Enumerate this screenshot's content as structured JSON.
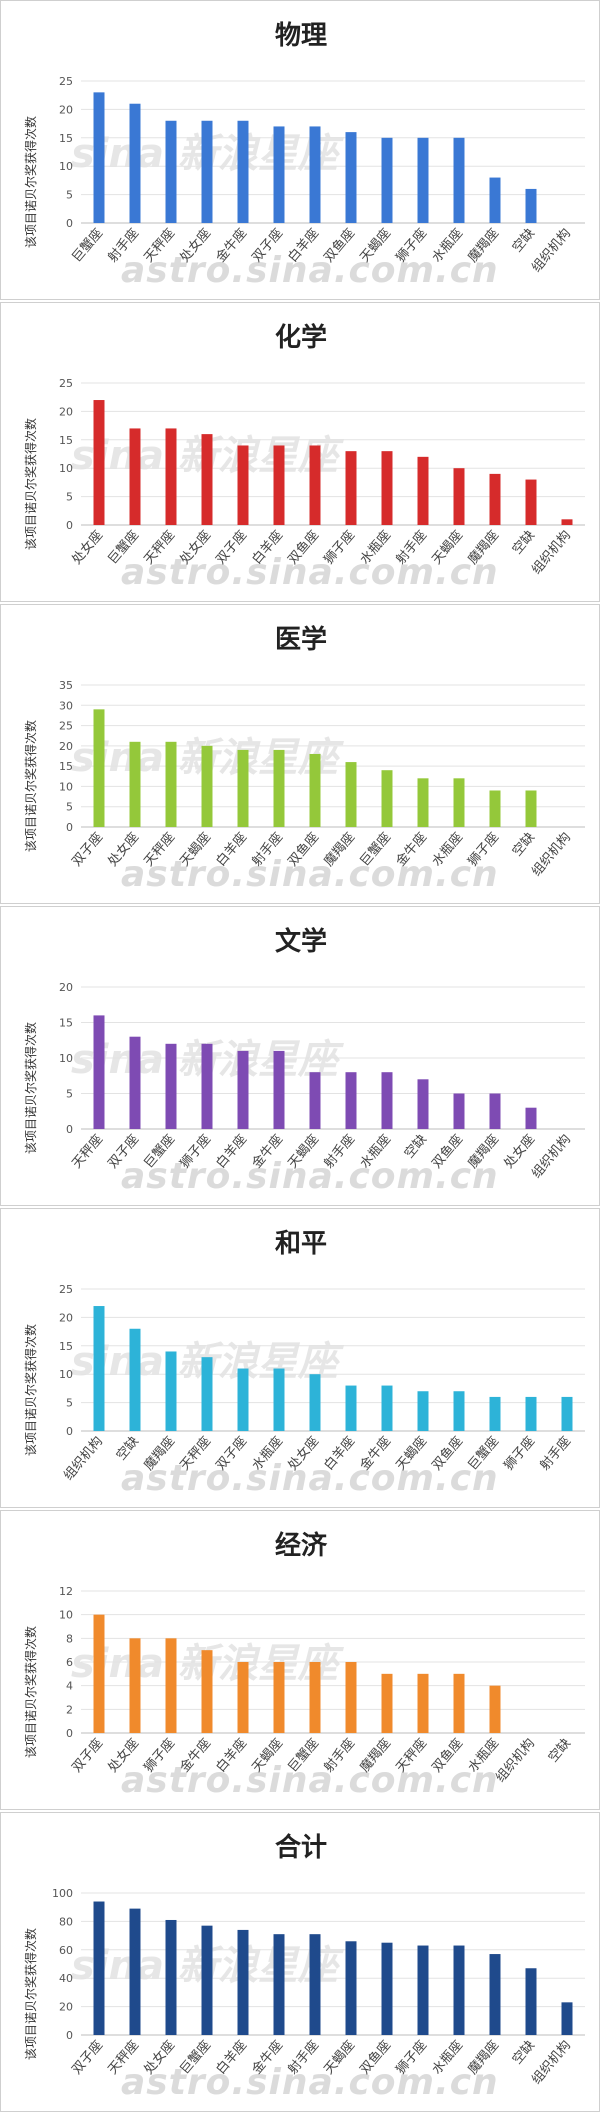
{
  "watermark": {
    "logo_text": "sina 新浪星座",
    "url_text": "astro.sina.com.cn"
  },
  "chart_data": [
    {
      "type": "bar",
      "title": "物理",
      "ylabel": "该项目诺贝尔奖获得次数",
      "color": "#3a78d4",
      "ylim": [
        0,
        25
      ],
      "yticks": [
        0,
        5,
        10,
        15,
        20,
        25
      ],
      "categories": [
        "巨蟹座",
        "射手座",
        "天秤座",
        "处女座",
        "金牛座",
        "双子座",
        "白羊座",
        "双鱼座",
        "天蝎座",
        "狮子座",
        "水瓶座",
        "魔羯座",
        "空缺",
        "组织机构"
      ],
      "values": [
        23,
        21,
        18,
        18,
        18,
        17,
        17,
        16,
        15,
        15,
        15,
        8,
        6,
        0
      ]
    },
    {
      "type": "bar",
      "title": "化学",
      "ylabel": "该项目诺贝尔奖获得次数",
      "color": "#d62b2b",
      "ylim": [
        0,
        25
      ],
      "yticks": [
        0,
        5,
        10,
        15,
        20,
        25
      ],
      "categories": [
        "处女座",
        "巨蟹座",
        "天秤座",
        "处女座",
        "双子座",
        "白羊座",
        "双鱼座",
        "狮子座",
        "水瓶座",
        "射手座",
        "天蝎座",
        "魔羯座",
        "空缺",
        "组织机构"
      ],
      "values": [
        22,
        17,
        17,
        16,
        14,
        14,
        14,
        13,
        13,
        12,
        10,
        9,
        8,
        1
      ]
    },
    {
      "type": "bar",
      "title": "医学",
      "ylabel": "该项目诺贝尔奖获得次数",
      "color": "#94c83a",
      "ylim": [
        0,
        35
      ],
      "yticks": [
        0,
        5,
        10,
        15,
        20,
        25,
        30,
        35
      ],
      "categories": [
        "双子座",
        "处女座",
        "天秤座",
        "天蝎座",
        "白羊座",
        "射手座",
        "双鱼座",
        "魔羯座",
        "巨蟹座",
        "金牛座",
        "水瓶座",
        "狮子座",
        "空缺",
        "组织机构"
      ],
      "values": [
        29,
        21,
        21,
        20,
        19,
        19,
        18,
        16,
        14,
        12,
        12,
        9,
        9,
        0
      ]
    },
    {
      "type": "bar",
      "title": "文学",
      "ylabel": "该项目诺贝尔奖获得次数",
      "color": "#7e4bb3",
      "ylim": [
        0,
        20
      ],
      "yticks": [
        0,
        5,
        10,
        15,
        20
      ],
      "categories": [
        "天秤座",
        "双子座",
        "巨蟹座",
        "狮子座",
        "白羊座",
        "金牛座",
        "天蝎座",
        "射手座",
        "水瓶座",
        "空缺",
        "双鱼座",
        "魔羯座",
        "处女座",
        "组织机构"
      ],
      "values": [
        16,
        13,
        12,
        12,
        11,
        11,
        8,
        8,
        8,
        7,
        5,
        5,
        3,
        0
      ]
    },
    {
      "type": "bar",
      "title": "和平",
      "ylabel": "该项目诺贝尔奖获得次数",
      "color": "#2db3d8",
      "ylim": [
        0,
        25
      ],
      "yticks": [
        0,
        5,
        10,
        15,
        20,
        25
      ],
      "categories": [
        "组织机构",
        "空缺",
        "魔羯座",
        "天秤座",
        "双子座",
        "水瓶座",
        "处女座",
        "白羊座",
        "金牛座",
        "天蝎座",
        "双鱼座",
        "巨蟹座",
        "狮子座",
        "射手座"
      ],
      "values": [
        22,
        18,
        14,
        13,
        11,
        11,
        10,
        8,
        8,
        7,
        7,
        6,
        6,
        6
      ]
    },
    {
      "type": "bar",
      "title": "经济",
      "ylabel": "该项目诺贝尔奖获得次数",
      "color": "#f08a2c",
      "ylim": [
        0,
        12
      ],
      "yticks": [
        0,
        2,
        4,
        6,
        8,
        10,
        12
      ],
      "categories": [
        "双子座",
        "处女座",
        "狮子座",
        "金牛座",
        "白羊座",
        "天蝎座",
        "巨蟹座",
        "射手座",
        "魔羯座",
        "天秤座",
        "双鱼座",
        "水瓶座",
        "组织机构",
        "空缺"
      ],
      "values": [
        10,
        8,
        8,
        7,
        6,
        6,
        6,
        6,
        5,
        5,
        5,
        4,
        0,
        0
      ]
    },
    {
      "type": "bar",
      "title": "合计",
      "ylabel": "该项目诺贝尔奖获得次数",
      "color": "#1f4a8c",
      "ylim": [
        0,
        100
      ],
      "yticks": [
        0,
        20,
        40,
        60,
        80,
        100
      ],
      "categories": [
        "双子座",
        "天秤座",
        "处女座",
        "巨蟹座",
        "白羊座",
        "金牛座",
        "射手座",
        "天蝎座",
        "双鱼座",
        "狮子座",
        "水瓶座",
        "魔羯座",
        "空缺",
        "组织机构"
      ],
      "values": [
        94,
        89,
        81,
        77,
        74,
        71,
        71,
        66,
        65,
        63,
        63,
        57,
        47,
        23
      ]
    }
  ]
}
